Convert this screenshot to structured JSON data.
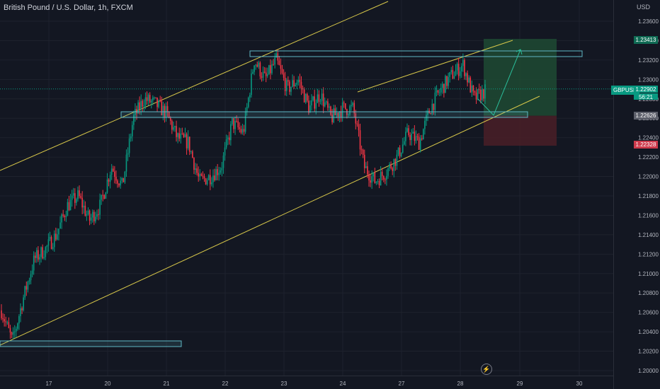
{
  "header": {
    "title": "British Pound / U.S. Dollar, 1h, FXCM",
    "currency": "USD"
  },
  "price_tags": {
    "symbol": "GBPUSD",
    "current": "1.22902",
    "countdown": "56:21",
    "upper": "1.23413",
    "entry": "1.22626",
    "stop": "1.22328"
  },
  "colors": {
    "background": "#131722",
    "bull": "#089981",
    "bear": "#f23645",
    "channel": "#d8c84a",
    "zone": "#5fb7c4",
    "target_fill": "#1f4a32",
    "stop_fill": "#4a1f27"
  },
  "chart_data": {
    "type": "candlestick",
    "title": "British Pound / U.S. Dollar, 1h, FXCM",
    "y_unit": "USD",
    "ylim": [
      1.1995,
      1.238
    ],
    "y_ticks": [
      "1.23600",
      "1.23400",
      "1.23200",
      "1.23000",
      "1.22800",
      "1.22600",
      "1.22400",
      "1.22200",
      "1.22000",
      "1.21800",
      "1.21600",
      "1.21400",
      "1.21200",
      "1.21000",
      "1.20800",
      "1.20600",
      "1.20400",
      "1.20200",
      "1.20000"
    ],
    "x_ticks": [
      "17",
      "20",
      "21",
      "22",
      "23",
      "24",
      "27",
      "28",
      "29",
      "30"
    ],
    "candle_anchor_prices": [
      1.2062,
      1.203,
      1.2075,
      1.2115,
      1.2125,
      1.214,
      1.217,
      1.218,
      1.2155,
      1.217,
      1.221,
      1.219,
      1.226,
      1.228,
      1.2275,
      1.2265,
      1.224,
      1.2235,
      1.2195,
      1.22,
      1.221,
      1.2255,
      1.2245,
      1.232,
      1.23,
      1.232,
      1.229,
      1.23,
      1.227,
      1.2285,
      1.226,
      1.227,
      1.227,
      1.221,
      1.2195,
      1.2205,
      1.222,
      1.2245,
      1.2235,
      1.227,
      1.229,
      1.2305,
      1.2315,
      1.228,
      1.2288
    ],
    "current_price": 1.22902,
    "horizontal_levels": [
      1.23413,
      1.22626,
      1.22328
    ],
    "grid": true,
    "legend": "none"
  }
}
